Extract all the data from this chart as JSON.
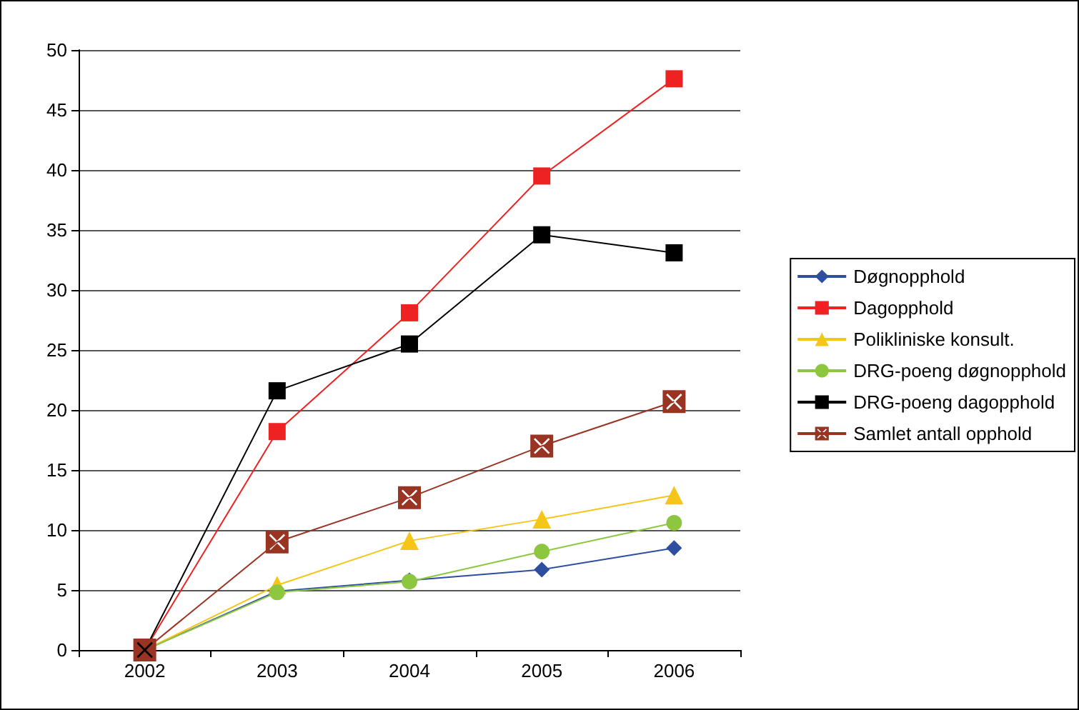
{
  "chart_data": {
    "type": "line",
    "categories": [
      "2002",
      "2003",
      "2004",
      "2005",
      "2006"
    ],
    "ylim": [
      0,
      50
    ],
    "yticks": [
      0,
      5,
      10,
      15,
      20,
      25,
      30,
      35,
      40,
      45,
      50
    ],
    "grid": "y",
    "legend": "right",
    "line_style": "solid",
    "series": [
      {
        "name": "Døgnopphold",
        "color": "#2e4ea0",
        "marker": "diamond",
        "values": [
          0,
          4.9,
          5.8,
          6.7,
          8.5
        ]
      },
      {
        "name": "Dagopphold",
        "color": "#ee2222",
        "marker": "square",
        "values": [
          0,
          18.2,
          28.1,
          39.5,
          47.6
        ]
      },
      {
        "name": "Polikliniske konsult.",
        "color": "#f5c518",
        "marker": "triangle",
        "values": [
          0,
          5.4,
          9.1,
          10.9,
          12.9
        ]
      },
      {
        "name": "DRG-poeng døgnopphold",
        "color": "#8dc63f",
        "marker": "circle",
        "values": [
          0,
          4.8,
          5.7,
          8.2,
          10.6
        ]
      },
      {
        "name": "DRG-poeng dagopphold",
        "color": "#000000",
        "marker": "square",
        "values": [
          0,
          21.6,
          25.5,
          34.6,
          33.1
        ]
      },
      {
        "name": "Samlet antall opphold",
        "color": "#993322",
        "marker": "cross",
        "values": [
          0,
          9.0,
          12.7,
          17.0,
          20.7
        ]
      }
    ]
  }
}
